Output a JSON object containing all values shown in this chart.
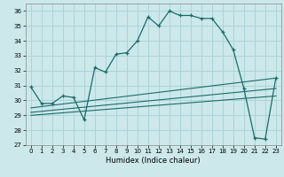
{
  "xlabel": "Humidex (Indice chaleur)",
  "background_color": "#cce8ea",
  "grid_color": "#aad4d6",
  "line_color": "#1a6b6b",
  "xlim": [
    -0.5,
    23.5
  ],
  "ylim": [
    27,
    36.5
  ],
  "yticks": [
    27,
    28,
    29,
    30,
    31,
    32,
    33,
    34,
    35,
    36
  ],
  "xticks": [
    0,
    1,
    2,
    3,
    4,
    5,
    6,
    7,
    8,
    9,
    10,
    11,
    12,
    13,
    14,
    15,
    16,
    17,
    18,
    19,
    20,
    21,
    22,
    23
  ],
  "series": [
    {
      "x": [
        0,
        1,
        2,
        3,
        4,
        5,
        6,
        7,
        8,
        9,
        10,
        11,
        12,
        13,
        14,
        15,
        16,
        17,
        18,
        19,
        20,
        21,
        22,
        23
      ],
      "y": [
        30.9,
        29.8,
        29.8,
        30.3,
        30.2,
        28.7,
        32.2,
        31.9,
        33.1,
        33.2,
        34.0,
        35.6,
        35.0,
        36.0,
        35.7,
        35.7,
        35.5,
        35.5,
        34.6,
        33.4,
        30.8,
        27.5,
        27.4,
        31.5
      ],
      "marker": "+"
    },
    {
      "x": [
        0,
        23
      ],
      "y": [
        29.5,
        31.5
      ],
      "marker": null
    },
    {
      "x": [
        0,
        23
      ],
      "y": [
        29.2,
        30.8
      ],
      "marker": null
    },
    {
      "x": [
        0,
        23
      ],
      "y": [
        29.0,
        30.3
      ],
      "marker": null
    }
  ]
}
